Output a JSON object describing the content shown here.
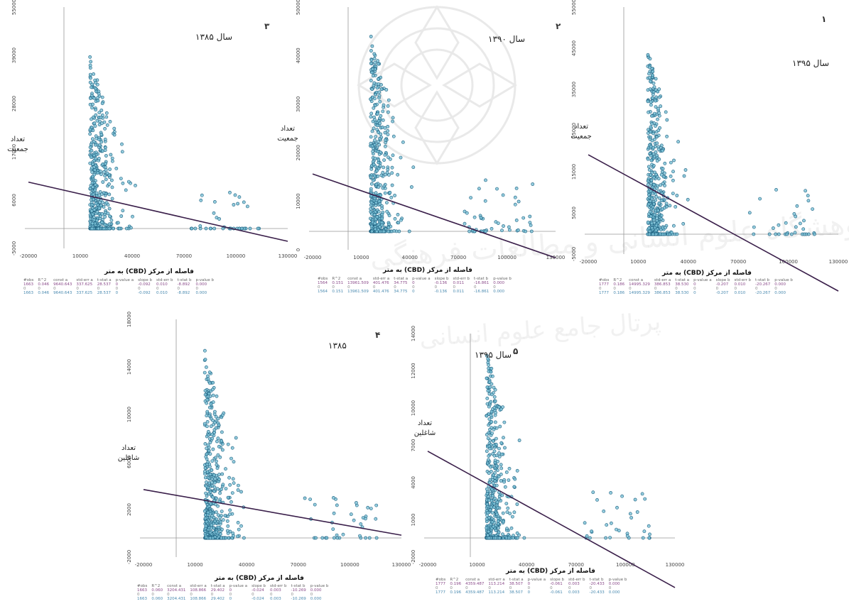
{
  "chart_data": [
    {
      "type": "scatter",
      "panel_number": "۳",
      "title": "سال ۱۳۸۵",
      "ylabel_lines": [
        "تعداد",
        "جمعیت"
      ],
      "xlabel": "فاصله از مرکز (CBD) به متر",
      "x_ticks": [
        "-20000",
        "10000",
        "40000",
        "70000",
        "100000",
        "130000"
      ],
      "y_ticks": [
        "55000",
        "39000",
        "28000",
        "17000",
        "6000",
        "-5000"
      ],
      "xlim": [
        -20000,
        140000
      ],
      "ylim": [
        -5000,
        55000
      ],
      "regression": {
        "intercept": 9640.643,
        "slope": -0.092
      },
      "scatter_summary": {
        "n": 1663,
        "x_center": 18000,
        "y_max": 43000
      },
      "stats_header": [
        "#obs",
        "R^2",
        "const a",
        "std-err a",
        "t-stat a",
        "p-value a",
        "slope b",
        "std-err b",
        "t-stat b",
        "p-value b"
      ],
      "stats_rows": [
        [
          "1663",
          "0.046",
          "9640.643",
          "337.625",
          "28.537",
          "0",
          "-0.092",
          "0.010",
          "-8.892",
          "0.000"
        ],
        [
          "0",
          "0",
          "0",
          "0",
          "0",
          "0",
          "0",
          "0",
          "0",
          "0"
        ],
        [
          "1663",
          "0.046",
          "9640.643",
          "337.625",
          "28.537",
          "0",
          "-0.092",
          "0.010",
          "-8.892",
          "0.000"
        ]
      ]
    },
    {
      "type": "scatter",
      "panel_number": "۲",
      "title": "سال ۱۳۹۰",
      "ylabel_lines": [
        "تعداد",
        "جمعیت"
      ],
      "xlabel": "فاصله از مرکز (CBD) به متر",
      "x_ticks": [
        "-20000",
        "10000",
        "40000",
        "70000",
        "100000",
        "130000"
      ],
      "y_ticks": [
        "50000",
        "40000",
        "30000",
        "20000",
        "10000",
        "0"
      ],
      "xlim": [
        -20000,
        140000
      ],
      "ylim": [
        -3000,
        60000
      ],
      "regression": {
        "intercept": 13961.509,
        "slope": -0.136
      },
      "scatter_summary": {
        "n": 1564,
        "x_center": 18000,
        "y_max": 55000
      },
      "stats_header": [
        "#obs",
        "R^2",
        "const a",
        "std-err a",
        "t-stat a",
        "p-value a",
        "slope b",
        "std-err b",
        "t-stat b",
        "p-value b"
      ],
      "stats_rows": [
        [
          "1564",
          "0.151",
          "13961.509",
          "401.476",
          "34.775",
          "0",
          "-0.136",
          "0.011",
          "-16.861",
          "0.000"
        ],
        [
          "0",
          "0",
          "0",
          "0",
          "0",
          "0",
          "0",
          "0",
          "0",
          "0"
        ],
        [
          "1564",
          "0.151",
          "13961.509",
          "401.476",
          "34.775",
          "0",
          "-0.136",
          "0.011",
          "-16.861",
          "0.000"
        ]
      ]
    },
    {
      "type": "scatter",
      "panel_number": "۱",
      "title": "سال ۱۳۹۵",
      "ylabel_lines": [
        "تعداد",
        "جمعیت"
      ],
      "xlabel": "فاصله از مرکز (CBD) به متر",
      "x_ticks": [
        "-20000",
        "10000",
        "40000",
        "70000",
        "100000",
        "130000"
      ],
      "y_ticks": [
        "55000",
        "45000",
        "35000",
        "25000",
        "15000",
        "5000",
        "-5000"
      ],
      "xlim": [
        -20000,
        140000
      ],
      "ylim": [
        -5000,
        55000
      ],
      "regression": {
        "intercept": 14995.329,
        "slope": -0.207
      },
      "scatter_summary": {
        "n": 1777,
        "x_center": 18000,
        "y_max": 45000
      },
      "stats_header": [
        "#obs",
        "R^2",
        "const a",
        "std-err a",
        "t-stat a",
        "p-value a",
        "slope b",
        "std-err b",
        "t-stat b",
        "p-value b"
      ],
      "stats_rows": [
        [
          "1777",
          "0.186",
          "14995.329",
          "386.853",
          "38.530",
          "0",
          "-0.207",
          "0.010",
          "-20.267",
          "0.000"
        ],
        [
          "0",
          "0",
          "0",
          "0",
          "0",
          "0",
          "0",
          "0",
          "0",
          "0"
        ],
        [
          "1777",
          "0.186",
          "14995.329",
          "386.853",
          "38.530",
          "0",
          "-0.207",
          "0.010",
          "-20.267",
          "0.000"
        ]
      ]
    },
    {
      "type": "scatter",
      "panel_number": "۴",
      "title": "۱۳۸۵",
      "ylabel_lines": [
        "تعداد",
        "شاغلین"
      ],
      "xlabel": "فاصله از مرکز (CBD) به متر",
      "x_ticks": [
        "-20000",
        "10000",
        "40000",
        "70000",
        "100000",
        "130000"
      ],
      "y_ticks": [
        "18000",
        "14000",
        "10000",
        "6000",
        "2000",
        "-2000"
      ],
      "xlim": [
        -20000,
        140000
      ],
      "ylim": [
        -2000,
        18000
      ],
      "regression": {
        "intercept": 3204.431,
        "slope": -0.024
      },
      "scatter_summary": {
        "n": 1663,
        "x_center": 18000,
        "y_max": 15500
      },
      "stats_header": [
        "#obs",
        "R^2",
        "const a",
        "std-err a",
        "t-stat a",
        "p-value a",
        "slope b",
        "std-err b",
        "t-stat b",
        "p-value b"
      ],
      "stats_rows": [
        [
          "1663",
          "0.060",
          "3204.431",
          "108.866",
          "29.402",
          "0",
          "-0.024",
          "0.003",
          "-10.269",
          "0.000"
        ],
        [
          "0",
          "0",
          "0",
          "0",
          "0",
          "0",
          "0",
          "0",
          "0",
          "0"
        ],
        [
          "1663",
          "0.060",
          "3204.431",
          "108.866",
          "29.402",
          "0",
          "-0.024",
          "0.003",
          "-10.269",
          "0.000"
        ]
      ]
    },
    {
      "type": "scatter",
      "panel_number": "۵",
      "title": "سال ۱۳۹۵",
      "ylabel_lines": [
        "تعداد",
        "شاغلین"
      ],
      "xlabel": "فاصله از مرکز (CBD) به متر",
      "x_ticks": [
        "-20000",
        "10000",
        "40000",
        "70000",
        "100000",
        "130000"
      ],
      "y_ticks": [
        "14000",
        "12000",
        "10000",
        "7000",
        "4000",
        "1000",
        "-2000"
      ],
      "xlim": [
        -20000,
        140000
      ],
      "ylim": [
        -2000,
        14000
      ],
      "regression": {
        "intercept": 4359.487,
        "slope": -0.061
      },
      "scatter_summary": {
        "n": 1777,
        "x_center": 18000,
        "y_max": 13000
      },
      "stats_header": [
        "#obs",
        "R^2",
        "const a",
        "std-err a",
        "t-stat a",
        "p-value a",
        "slope b",
        "std-err b",
        "t-stat b",
        "p-value b"
      ],
      "stats_rows": [
        [
          "1777",
          "0.196",
          "4359.487",
          "113.214",
          "38.507",
          "0",
          "-0.061",
          "0.003",
          "-20.433",
          "0.000"
        ],
        [
          "0",
          "0",
          "0",
          "0",
          "0",
          "0",
          "0",
          "0",
          "0",
          "0"
        ],
        [
          "1777",
          "0.196",
          "4359.487",
          "113.214",
          "38.507",
          "0",
          "-0.061",
          "0.003",
          "-20.433",
          "0.000"
        ]
      ]
    }
  ],
  "colors": {
    "point_fill": "#7ac0d6",
    "point_stroke": "#1a5e7e",
    "regression_line": "#3a1f4a",
    "axis": "#999999",
    "tick_text": "#444444"
  }
}
